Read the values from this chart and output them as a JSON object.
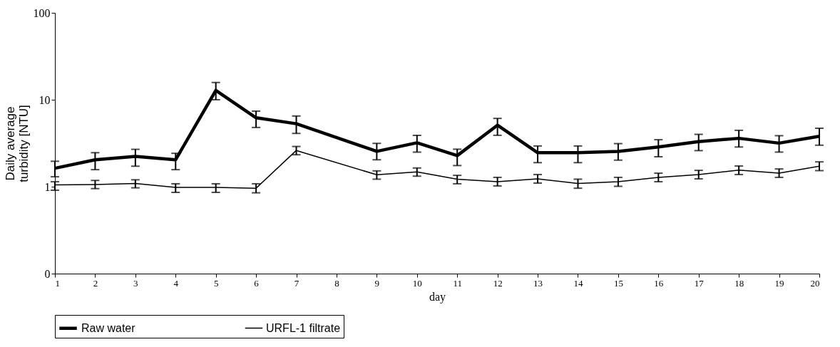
{
  "chart_data": {
    "type": "line",
    "xlabel": "day",
    "ylabel": "Daily average turbidity [NTU]",
    "x": [
      1,
      2,
      3,
      4,
      5,
      6,
      7,
      9,
      10,
      11,
      12,
      13,
      14,
      15,
      16,
      17,
      18,
      19,
      20
    ],
    "xlim": [
      1,
      20
    ],
    "xticks": [
      1,
      2,
      3,
      4,
      5,
      6,
      7,
      8,
      9,
      10,
      11,
      12,
      13,
      14,
      15,
      16,
      17,
      18,
      19,
      20
    ],
    "ylim": [
      0.1,
      100
    ],
    "yticks": [
      {
        "value": 0.1,
        "label": "0"
      },
      1,
      10,
      100
    ],
    "log": true,
    "grid": false,
    "legend": "bottom",
    "marker": "none",
    "line_style": "solid",
    "series": [
      {
        "name": "Raw water",
        "color": "#000000",
        "values": [
          1.63,
          2.04,
          2.23,
          2.04,
          12.8,
          6.2,
          5.3,
          2.55,
          3.2,
          2.28,
          5.1,
          2.46,
          2.46,
          2.55,
          2.86,
          3.3,
          3.6,
          3.17,
          3.8
        ],
        "errors": [
          [
            1.3,
            1.96
          ],
          [
            1.57,
            2.46
          ],
          [
            1.72,
            2.69
          ],
          [
            1.57,
            2.42
          ],
          [
            10,
            15.8
          ],
          [
            4.8,
            7.4
          ],
          [
            4.1,
            6.5
          ],
          [
            2.04,
            3.15
          ],
          [
            2.5,
            3.9
          ],
          [
            1.75,
            2.7
          ],
          [
            3.9,
            6.1
          ],
          [
            1.89,
            2.94
          ],
          [
            1.89,
            2.94
          ],
          [
            2.02,
            3.13
          ],
          [
            2.21,
            3.47
          ],
          [
            2.6,
            4.0
          ],
          [
            2.86,
            4.45
          ],
          [
            2.5,
            3.86
          ],
          [
            3.0,
            4.7
          ]
        ]
      },
      {
        "name": "URFL-1 filtrate",
        "color": "#000000",
        "values": [
          1.05,
          1.06,
          1.09,
          0.98,
          0.98,
          0.96,
          2.61,
          1.37,
          1.48,
          1.22,
          1.14,
          1.23,
          1.09,
          1.14,
          1.28,
          1.38,
          1.55,
          1.43,
          1.72
        ],
        "errors": [
          [
            0.91,
            1.14
          ],
          [
            0.95,
            1.18
          ],
          [
            0.97,
            1.2
          ],
          [
            0.86,
            1.08
          ],
          [
            0.86,
            1.08
          ],
          [
            0.85,
            1.08
          ],
          [
            2.33,
            2.9
          ],
          [
            1.22,
            1.52
          ],
          [
            1.32,
            1.64
          ],
          [
            1.08,
            1.35
          ],
          [
            1.02,
            1.28
          ],
          [
            1.1,
            1.38
          ],
          [
            0.96,
            1.22
          ],
          [
            1.01,
            1.28
          ],
          [
            1.14,
            1.43
          ],
          [
            1.23,
            1.54
          ],
          [
            1.38,
            1.73
          ],
          [
            1.28,
            1.6
          ],
          [
            1.53,
            1.93
          ]
        ]
      }
    ]
  }
}
